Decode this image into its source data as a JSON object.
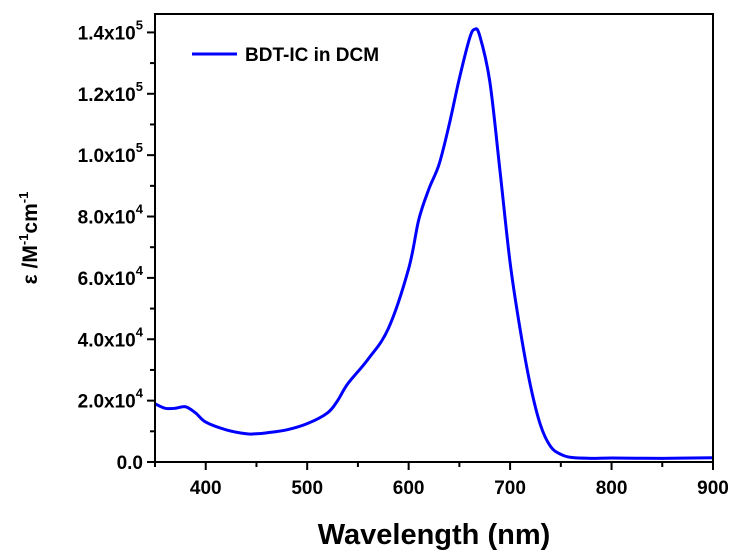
{
  "chart_data": {
    "type": "line",
    "xlabel": "Wavelength (nm)",
    "ylabel": {
      "base": "ε /M",
      "exp1": "-1",
      "mid": "cm",
      "exp2": "-1"
    },
    "xlim": [
      350,
      900
    ],
    "ylim": [
      0,
      146000
    ],
    "x_ticks": [
      400,
      500,
      600,
      700,
      800,
      900
    ],
    "x_tick_labels": [
      "400",
      "500",
      "600",
      "700",
      "800",
      "900"
    ],
    "y_ticks": [
      {
        "value": 0,
        "mantissa": "0.0",
        "exp": ""
      },
      {
        "value": 20000,
        "mantissa": "2.0x10",
        "exp": "4"
      },
      {
        "value": 40000,
        "mantissa": "4.0x10",
        "exp": "4"
      },
      {
        "value": 60000,
        "mantissa": "6.0x10",
        "exp": "4"
      },
      {
        "value": 80000,
        "mantissa": "8.0x10",
        "exp": "4"
      },
      {
        "value": 100000,
        "mantissa": "1.0x10",
        "exp": "5"
      },
      {
        "value": 120000,
        "mantissa": "1.2x10",
        "exp": "5"
      },
      {
        "value": 140000,
        "mantissa": "1.4x10",
        "exp": "5"
      }
    ],
    "grid": false,
    "legend_position": "top-left",
    "series": [
      {
        "name": "BDT-IC in DCM",
        "color": "#0000ff",
        "x": [
          350,
          360,
          370,
          380,
          390,
          400,
          420,
          440,
          450,
          460,
          480,
          500,
          520,
          530,
          540,
          560,
          580,
          600,
          610,
          620,
          630,
          640,
          650,
          660,
          665,
          670,
          680,
          690,
          700,
          710,
          720,
          730,
          740,
          750,
          760,
          780,
          800,
          850,
          900
        ],
        "y": [
          19000,
          17500,
          17500,
          18000,
          16000,
          13000,
          10500,
          9200,
          9200,
          9500,
          10500,
          12500,
          16000,
          20000,
          25500,
          33500,
          43500,
          63000,
          79000,
          89000,
          97000,
          110000,
          125000,
          138000,
          141000,
          139000,
          124000,
          95000,
          65000,
          43000,
          25000,
          12000,
          5000,
          2500,
          1500,
          1200,
          1300,
          1200,
          1400
        ]
      }
    ]
  }
}
